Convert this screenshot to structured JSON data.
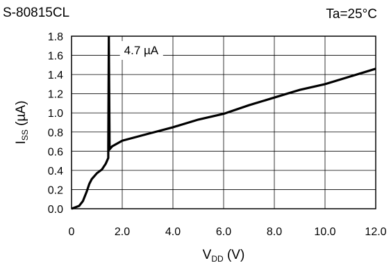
{
  "chart_data": {
    "type": "line",
    "title_left": "S-80815CL",
    "title_right": "Ta=25°C",
    "xlabel": {
      "main": "V",
      "sub": "DD",
      "unit": " (V)"
    },
    "ylabel": {
      "main": "I",
      "sub": "SS",
      "unit": " (µA)"
    },
    "xlim": [
      0,
      12
    ],
    "ylim": [
      0,
      1.8
    ],
    "x_ticks": [
      0,
      2,
      4,
      6,
      8,
      10,
      12
    ],
    "x_tick_labels": [
      "0",
      "2.0",
      "4.0",
      "6.0",
      "8.0",
      "10.0",
      "12.0"
    ],
    "y_ticks": [
      0,
      0.2,
      0.4,
      0.6,
      0.8,
      1.0,
      1.2,
      1.4,
      1.6,
      1.8
    ],
    "y_tick_labels": [
      "0.0",
      "0.2",
      "0.4",
      "0.6",
      "0.8",
      "1.0",
      "1.2",
      "1.4",
      "1.6",
      "1.8"
    ],
    "grid": true,
    "series": [
      {
        "color": "#000000",
        "x": [
          0,
          0.3,
          0.45,
          0.6,
          0.7,
          0.8,
          1.0,
          1.2,
          1.35,
          1.45,
          1.45,
          1.47,
          1.5,
          1.6,
          2.0,
          3.0,
          4.0,
          5.0,
          6.0,
          7.0,
          8.0,
          9.0,
          10.0,
          11.0,
          12.0
        ],
        "y": [
          0,
          0.03,
          0.08,
          0.18,
          0.26,
          0.31,
          0.37,
          0.41,
          0.47,
          0.53,
          0.64,
          1.8,
          0.62,
          0.65,
          0.71,
          0.78,
          0.85,
          0.93,
          0.99,
          1.08,
          1.16,
          1.24,
          1.3,
          1.38,
          1.46
        ]
      }
    ],
    "annotation": {
      "text": "4.7 µA",
      "x": 1.47,
      "y": 1.8
    }
  }
}
